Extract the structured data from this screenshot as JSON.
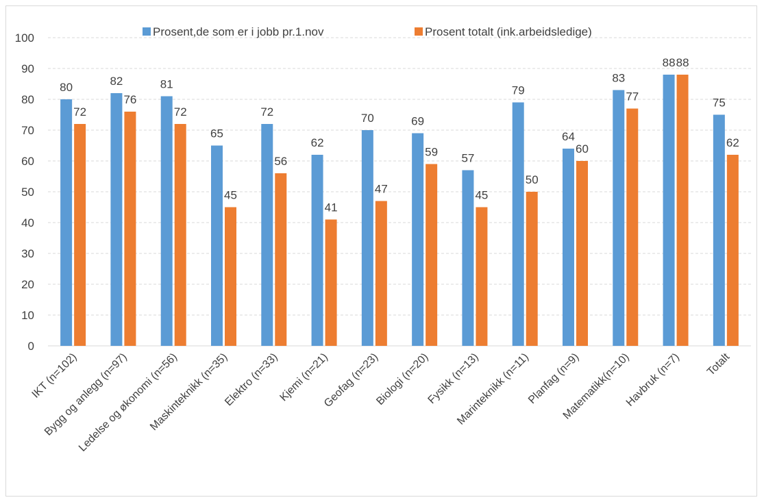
{
  "chart_data": {
    "type": "bar",
    "title": "",
    "xlabel": "",
    "ylabel": "",
    "ylim": [
      0,
      100
    ],
    "yticks": [
      0,
      10,
      20,
      30,
      40,
      50,
      60,
      70,
      80,
      90,
      100
    ],
    "grid": true,
    "legend_position": "top",
    "categories": [
      "IKT (n=102)",
      "Bygg og anlegg (n=97)",
      "Ledelse og økonomi (n=56)",
      "Maskinteknikk (n=35)",
      "Elektro (n=33)",
      "Kjemi (n=21)",
      "Geofag (n=23)",
      "Biologi (n=20)",
      "Fysikk (n=13)",
      "Marinteknikk (n=11)",
      "Planfag (n=9)",
      "Matematikk(n=10)",
      "Havbruk (n=7)",
      "Totalt"
    ],
    "series": [
      {
        "name": "Prosent,de som er i jobb pr.1.nov",
        "color": "#5b9bd5",
        "values": [
          80,
          82,
          81,
          65,
          72,
          62,
          70,
          69,
          57,
          79,
          64,
          83,
          88,
          75
        ]
      },
      {
        "name": "Prosent totalt (ink.arbeidsledige)",
        "color": "#ed7d31",
        "values": [
          72,
          76,
          72,
          45,
          56,
          41,
          47,
          59,
          45,
          50,
          60,
          77,
          88,
          62
        ]
      }
    ]
  }
}
